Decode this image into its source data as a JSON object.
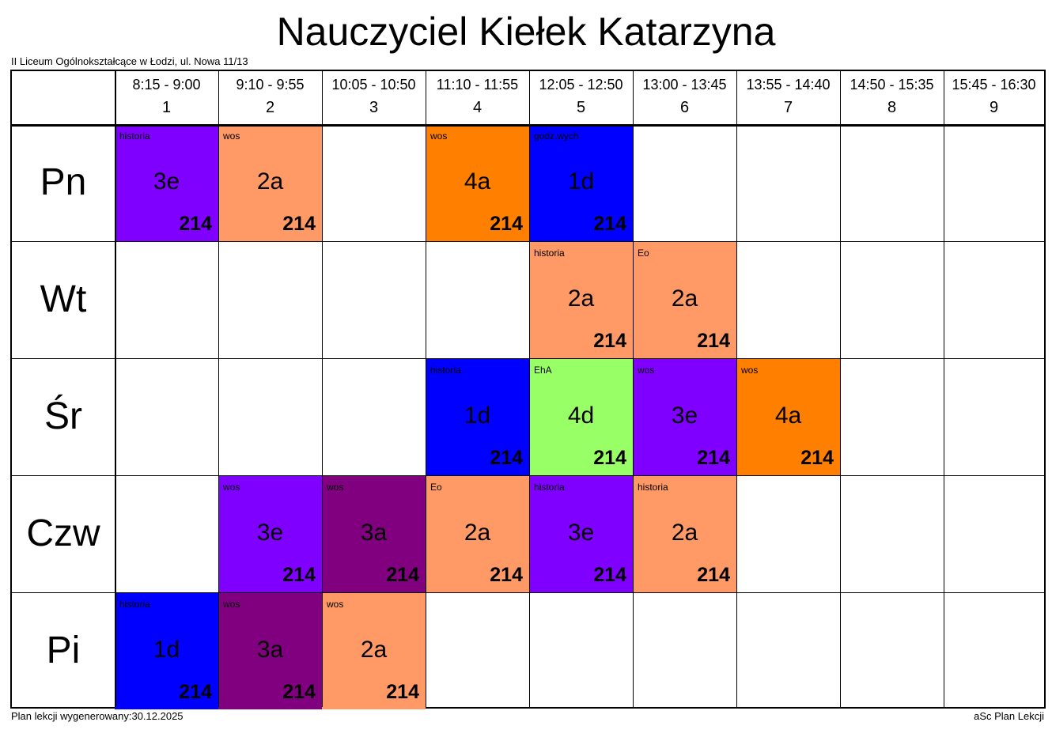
{
  "title": "Nauczyciel Kiełek Katarzyna",
  "school": "II Liceum Ogólnokształcące w Łodzi, ul. Nowa 11/13",
  "footer": {
    "generated": "Plan lekcji wygenerowany:30.12.2025",
    "app": "aSc Plan Lekcji"
  },
  "periods": [
    {
      "num": "1",
      "time": "8:15 - 9:00"
    },
    {
      "num": "2",
      "time": "9:10 - 9:55"
    },
    {
      "num": "3",
      "time": "10:05 - 10:50"
    },
    {
      "num": "4",
      "time": "11:10 - 11:55"
    },
    {
      "num": "5",
      "time": "12:05 - 12:50"
    },
    {
      "num": "6",
      "time": "13:00 - 13:45"
    },
    {
      "num": "7",
      "time": "13:55 - 14:40"
    },
    {
      "num": "8",
      "time": "14:50 - 15:35"
    },
    {
      "num": "9",
      "time": "15:45 - 16:30"
    }
  ],
  "days": [
    "Pn",
    "Wt",
    "Śr",
    "Czw",
    "Pi"
  ],
  "colors": {
    "violet": "#8000ff",
    "salmon": "#ff9966",
    "orange": "#ff8000",
    "blue": "#0000ff",
    "lime": "#99ff66",
    "purple": "#800080"
  },
  "lessons": [
    {
      "day": 0,
      "period": 1,
      "subject": "historia",
      "class": "3e",
      "room": "214",
      "color": "#8000ff"
    },
    {
      "day": 0,
      "period": 2,
      "subject": "wos",
      "class": "2a",
      "room": "214",
      "color": "#ff9966"
    },
    {
      "day": 0,
      "period": 4,
      "subject": "wos",
      "class": "4a",
      "room": "214",
      "color": "#ff8000"
    },
    {
      "day": 0,
      "period": 5,
      "subject": "godz.wych",
      "class": "1d",
      "room": "214",
      "color": "#0000ff"
    },
    {
      "day": 1,
      "period": 5,
      "subject": "historia",
      "class": "2a",
      "room": "214",
      "color": "#ff9966"
    },
    {
      "day": 1,
      "period": 6,
      "subject": "Eo",
      "class": "2a",
      "room": "214",
      "color": "#ff9966"
    },
    {
      "day": 2,
      "period": 4,
      "subject": "historia",
      "class": "1d",
      "room": "214",
      "color": "#0000ff"
    },
    {
      "day": 2,
      "period": 5,
      "subject": "EhA",
      "class": "4d",
      "room": "214",
      "color": "#99ff66"
    },
    {
      "day": 2,
      "period": 6,
      "subject": "wos",
      "class": "3e",
      "room": "214",
      "color": "#8000ff"
    },
    {
      "day": 2,
      "period": 7,
      "subject": "wos",
      "class": "4a",
      "room": "214",
      "color": "#ff8000"
    },
    {
      "day": 3,
      "period": 2,
      "subject": "wos",
      "class": "3e",
      "room": "214",
      "color": "#8000ff"
    },
    {
      "day": 3,
      "period": 3,
      "subject": "wos",
      "class": "3a",
      "room": "214",
      "color": "#800080"
    },
    {
      "day": 3,
      "period": 4,
      "subject": "Eo",
      "class": "2a",
      "room": "214",
      "color": "#ff9966"
    },
    {
      "day": 3,
      "period": 5,
      "subject": "historia",
      "class": "3e",
      "room": "214",
      "color": "#8000ff"
    },
    {
      "day": 3,
      "period": 6,
      "subject": "historia",
      "class": "2a",
      "room": "214",
      "color": "#ff9966"
    },
    {
      "day": 4,
      "period": 1,
      "subject": "historia",
      "class": "1d",
      "room": "214",
      "color": "#0000ff"
    },
    {
      "day": 4,
      "period": 2,
      "subject": "wos",
      "class": "3a",
      "room": "214",
      "color": "#800080"
    },
    {
      "day": 4,
      "period": 3,
      "subject": "wos",
      "class": "2a",
      "room": "214",
      "color": "#ff9966"
    }
  ]
}
